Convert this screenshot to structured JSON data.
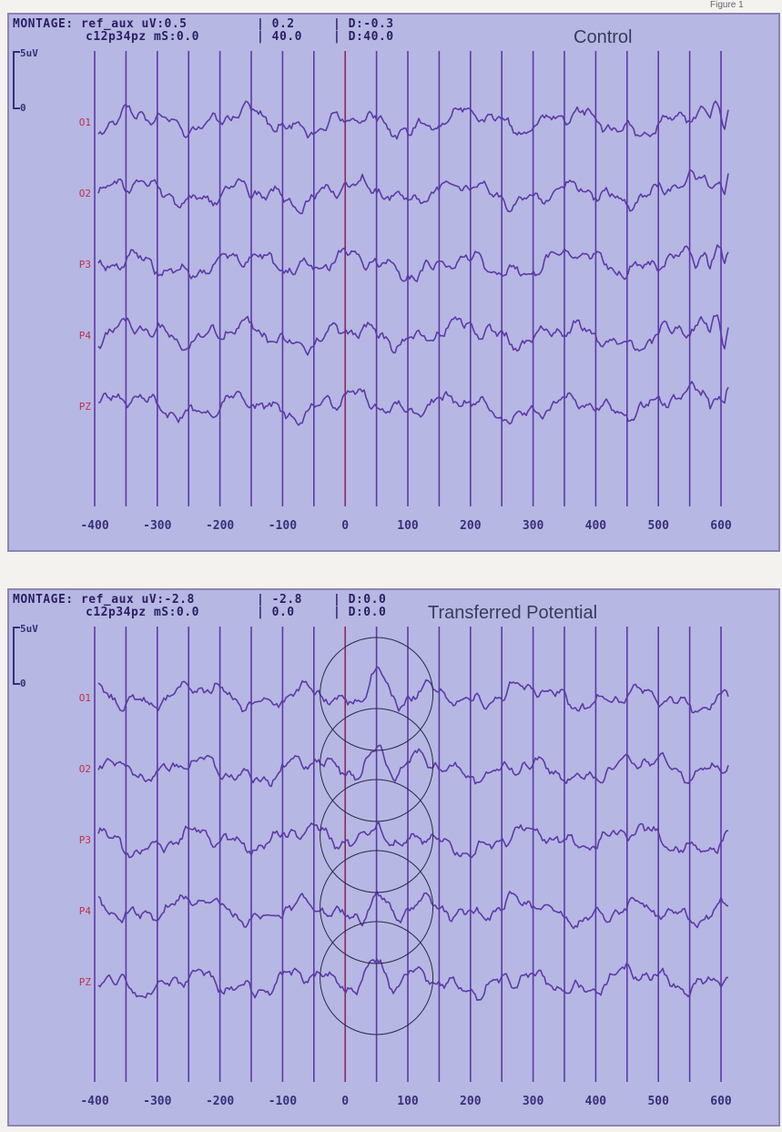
{
  "figure_label": "Figure 1",
  "chart_data": [
    {
      "type": "line",
      "title": "Control",
      "header": {
        "line1_left": "MONTAGE: ref_aux uV:0.5",
        "line1_mid": "0.2",
        "line1_right": "D:-0.3",
        "line2_left": "c12p34pz mS:0.0",
        "line2_mid": "40.0",
        "line2_right": "D:40.0"
      },
      "scale": {
        "top": "5uV",
        "bottom": "0"
      },
      "xlim": [
        -400,
        600
      ],
      "xticks": [
        -400,
        -300,
        -200,
        -100,
        0,
        100,
        200,
        300,
        400,
        500,
        600
      ],
      "channels": [
        "O1",
        "O2",
        "P3",
        "P4",
        "PZ"
      ],
      "circles": [],
      "colors": {
        "trace": "#5b3aa8",
        "gridline": "#5b3aa8"
      }
    },
    {
      "type": "line",
      "title": "Transferred Potential",
      "header": {
        "line1_left": "MONTAGE: ref_aux uV:-2.8",
        "line1_mid": "-2.8",
        "line1_right": "D:0.0",
        "line2_left": "c12p34pz mS:0.0",
        "line2_mid": "0.0",
        "line2_right": "D:0.0"
      },
      "scale": {
        "top": "5uV",
        "bottom": "0"
      },
      "xlim": [
        -400,
        600
      ],
      "xticks": [
        -400,
        -300,
        -200,
        -100,
        0,
        100,
        200,
        300,
        400,
        500,
        600
      ],
      "channels": [
        "O1",
        "O2",
        "P3",
        "P4",
        "PZ"
      ],
      "circles": [
        50,
        50,
        50,
        50,
        50
      ],
      "colors": {
        "trace": "#5b3aa8",
        "gridline": "#5b3aa8"
      }
    }
  ]
}
